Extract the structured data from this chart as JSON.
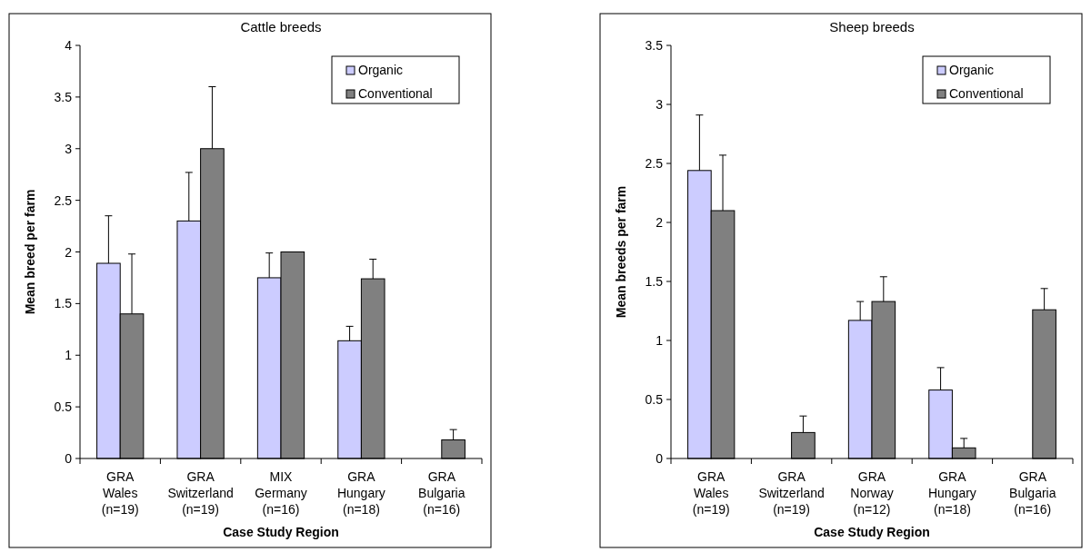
{
  "chart_data": [
    {
      "type": "bar",
      "title": "Cattle breeds",
      "xlabel": "Case Study Region",
      "ylabel": "Mean breed per farm",
      "categories": [
        "GRA\nWales\n(n=19)",
        "GRA\nSwitzerland\n(n=19)",
        "MIX\nGermany\n(n=16)",
        "GRA\nHungary\n(n=18)",
        "GRA\nBulgaria\n(n=16)"
      ],
      "series": [
        {
          "name": "Organic",
          "color": "#ccccff",
          "values": [
            1.89,
            2.3,
            1.75,
            1.14,
            null
          ],
          "errors": [
            [
              1.89,
              2.35
            ],
            [
              2.3,
              2.77
            ],
            [
              1.75,
              1.99
            ],
            [
              1.14,
              1.28
            ],
            null
          ]
        },
        {
          "name": "Conventional",
          "color": "#808080",
          "values": [
            1.4,
            3.0,
            2.0,
            1.74,
            0.18
          ],
          "errors": [
            [
              1.4,
              1.98
            ],
            [
              3.0,
              3.6
            ],
            [
              2.0,
              2.0
            ],
            [
              1.74,
              1.93
            ],
            [
              0.18,
              0.28
            ]
          ]
        }
      ],
      "ylim": [
        0,
        4
      ],
      "yticks": [
        0,
        0.5,
        1,
        1.5,
        2,
        2.5,
        3,
        3.5,
        4
      ],
      "grid": false,
      "legend": "top right"
    },
    {
      "type": "bar",
      "title": "Sheep breeds",
      "xlabel": "Case Study Region",
      "ylabel": "Mean breeds per farm",
      "categories": [
        "GRA\nWales\n(n=19)",
        "GRA\nSwitzerland\n(n=19)",
        "GRA\nNorway\n(n=12)",
        "GRA\nHungary\n(n=18)",
        "GRA\nBulgaria\n(n=16)"
      ],
      "series": [
        {
          "name": "Organic",
          "color": "#ccccff",
          "values": [
            2.44,
            null,
            1.17,
            0.58,
            null
          ],
          "errors": [
            [
              2.44,
              2.91
            ],
            null,
            [
              1.17,
              1.33
            ],
            [
              0.58,
              0.77
            ],
            null
          ]
        },
        {
          "name": "Conventional",
          "color": "#808080",
          "values": [
            2.1,
            0.22,
            1.33,
            0.09,
            1.26
          ],
          "errors": [
            [
              2.1,
              2.57
            ],
            [
              0.22,
              0.36
            ],
            [
              1.33,
              1.54
            ],
            [
              0.09,
              0.17
            ],
            [
              1.26,
              1.44
            ]
          ]
        }
      ],
      "ylim": [
        0,
        3.5
      ],
      "yticks": [
        0,
        0.5,
        1,
        1.5,
        2,
        2.5,
        3,
        3.5
      ],
      "grid": false,
      "legend": "top right"
    }
  ]
}
